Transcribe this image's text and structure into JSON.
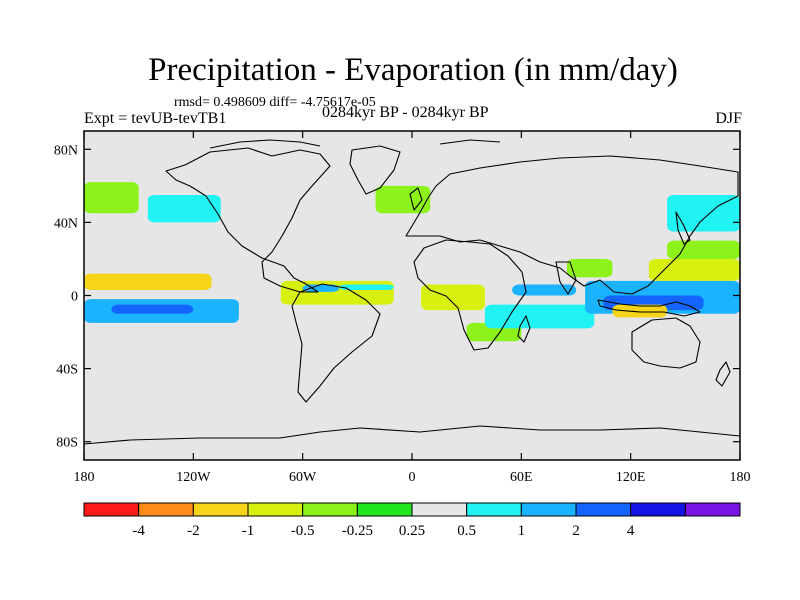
{
  "title": "Precipitation - Evaporation (in mm/day)",
  "stats_line": "rmsd= 0.498609 diff= -4.75617e-05",
  "experiment_label": "Expt = tevUB-tevTB1",
  "period_label": "0284kyr BP - 0284kyr BP",
  "season_label": "DJF",
  "y_axis_ticks": [
    "80N",
    "40N",
    "0",
    "40S",
    "80S"
  ],
  "x_axis_ticks": [
    "180",
    "120W",
    "60W",
    "0",
    "60E",
    "120E",
    "180"
  ],
  "colors": {
    "background_neutral": "#e6e6e6",
    "coastline": "#000000"
  },
  "colorbar": {
    "colors": [
      "#ff1a1a",
      "#ff8c1a",
      "#f5d41a",
      "#d8f00f",
      "#8cf21a",
      "#22e61e",
      "#e6e6e6",
      "#21f2f2",
      "#1ab3ff",
      "#1464ff",
      "#1414e6",
      "#7a14e6"
    ],
    "labels": [
      "-4",
      "-2",
      "-1",
      "-0.5",
      "-0.25",
      "0.25",
      "0.5",
      "1",
      "2",
      "4"
    ]
  },
  "chart_data": {
    "type": "heatmap",
    "title": "Precipitation - Evaporation (in mm/day)",
    "xlim": [
      -180,
      180
    ],
    "ylim": [
      -90,
      90
    ],
    "xticks": [
      -180,
      -120,
      -60,
      0,
      60,
      120,
      180
    ],
    "yticks": [
      80,
      40,
      0,
      -40,
      -80
    ],
    "contour_levels": [
      -4,
      -2,
      -1,
      -0.5,
      -0.25,
      0.25,
      0.5,
      1,
      2,
      4
    ],
    "regions": [
      {
        "lon": [
          -180,
          -110
        ],
        "lat": [
          3,
          12
        ],
        "value": -1.5
      },
      {
        "lon": [
          -180,
          -95
        ],
        "lat": [
          -15,
          -2
        ],
        "value": 1.5
      },
      {
        "lon": [
          -165,
          -120
        ],
        "lat": [
          -10,
          -5
        ],
        "value": 3
      },
      {
        "lon": [
          -145,
          -105
        ],
        "lat": [
          40,
          55
        ],
        "value": 0.75
      },
      {
        "lon": [
          -180,
          -150
        ],
        "lat": [
          45,
          62
        ],
        "value": -0.4
      },
      {
        "lon": [
          -72,
          -10
        ],
        "lat": [
          -5,
          8
        ],
        "value": -0.75
      },
      {
        "lon": [
          -55,
          -35
        ],
        "lat": [
          -38,
          -25
        ],
        "value": 0.4
      },
      {
        "lon": [
          -35,
          10
        ],
        "lat": [
          -25,
          -15
        ],
        "value": 0.4
      },
      {
        "lon": [
          -70,
          -30
        ],
        "lat": [
          30,
          40
        ],
        "value": 0.4
      },
      {
        "lon": [
          -20,
          10
        ],
        "lat": [
          45,
          60
        ],
        "value": -0.4
      },
      {
        "lon": [
          -60,
          -40
        ],
        "lat": [
          2,
          6
        ],
        "value": 1.5
      },
      {
        "lon": [
          -40,
          -10
        ],
        "lat": [
          3,
          6
        ],
        "value": 0.75
      },
      {
        "lon": [
          5,
          40
        ],
        "lat": [
          -8,
          6
        ],
        "value": -0.75
      },
      {
        "lon": [
          30,
          60
        ],
        "lat": [
          -25,
          -15
        ],
        "value": -0.5
      },
      {
        "lon": [
          40,
          100
        ],
        "lat": [
          -18,
          -5
        ],
        "value": 0.75
      },
      {
        "lon": [
          55,
          90
        ],
        "lat": [
          0,
          6
        ],
        "value": 1.5
      },
      {
        "lon": [
          85,
          110
        ],
        "lat": [
          10,
          20
        ],
        "value": -0.5
      },
      {
        "lon": [
          95,
          180
        ],
        "lat": [
          -10,
          8
        ],
        "value": 1.5
      },
      {
        "lon": [
          105,
          160
        ],
        "lat": [
          -8,
          0
        ],
        "value": 3
      },
      {
        "lon": [
          110,
          140
        ],
        "lat": [
          -12,
          -5
        ],
        "value": -1.5
      },
      {
        "lon": [
          130,
          180
        ],
        "lat": [
          8,
          20
        ],
        "value": -0.75
      },
      {
        "lon": [
          140,
          180
        ],
        "lat": [
          35,
          55
        ],
        "value": 0.75
      },
      {
        "lon": [
          140,
          180
        ],
        "lat": [
          20,
          30
        ],
        "value": -0.4
      }
    ]
  }
}
